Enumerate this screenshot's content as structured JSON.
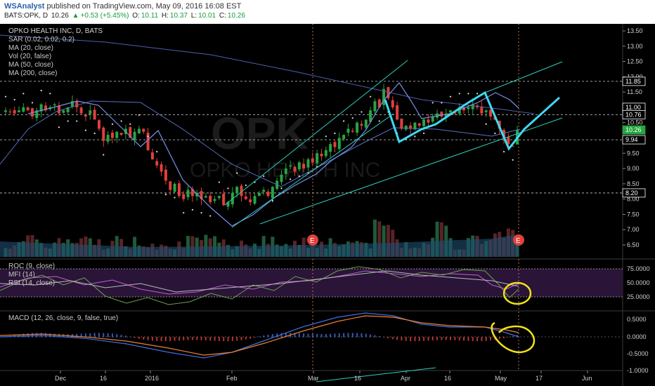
{
  "header": {
    "author": "WSAnalyst",
    "published_text": "published on TradingView.com, May 09, 2016 16:08 EST",
    "symbol": "BATS:OPK, D",
    "last": "10.26",
    "change": "+0.53 (+5.45%)",
    "o_label": "O:",
    "o_value": "10.11",
    "h_label": "H:",
    "h_value": "10.37",
    "l_label": "L:",
    "l_value": "10.01",
    "c_label": "C:",
    "c_value": "10.26"
  },
  "legend": [
    "OPKO HEALTH INC, D, BATS",
    "SAR (0.02, 0.02, 0.2)",
    "MA (20, close)",
    "Vol (20, false)",
    "MA (50, close)",
    "MA (200, close)"
  ],
  "watermark": {
    "symbol": "OPK",
    "name": "OPKO HEALTH INC"
  },
  "oscillator_legend": [
    "ROC (9, close)",
    "MFI (14)",
    "RSI (14, close)"
  ],
  "macd_legend": "MACD (12, 26, close, 9, false, true)",
  "price_axis": [
    "13.50",
    "13.00",
    "12.50",
    "12.00",
    "11.50",
    "11.00",
    "10.50",
    "10.00",
    "9.50",
    "9.00",
    "8.50",
    "8.00",
    "7.50",
    "7.00",
    "6.50"
  ],
  "price_markers": {
    "m1": "11.85",
    "m2": "11.00",
    "m3": "10.76",
    "m4": "10.26",
    "m5": "9.94",
    "m6": "8.20"
  },
  "osc_axis": [
    "75.0000",
    "50.0000",
    "25.0000"
  ],
  "macd_axis": [
    "0.5000",
    "0.0000",
    "-0.5000",
    "-1.0000"
  ],
  "time_axis": [
    "Dec",
    "16",
    "2016",
    "Feb",
    "Mar",
    "16",
    "Apr",
    "16",
    "May",
    "17",
    "Jun"
  ],
  "earnings_marker": "E",
  "colors": {
    "up": "#26a641",
    "down": "#e0403a",
    "ma20": "#7a8fe6",
    "ma50": "#5a6fbf",
    "channel": "#2fcfc0",
    "pattern": "#3fd8f0",
    "annotation": "#f0e21a",
    "rsi": "#c060d0",
    "roc": "#6f9f4f",
    "macd": "#3f6fe0",
    "signal": "#f07f2f"
  },
  "chart_data": {
    "type": "candlestick",
    "title": "OPKO HEALTH INC, D, BATS",
    "x_ticks": [
      "Dec",
      "16",
      "2016",
      "Feb",
      "Mar",
      "16",
      "Apr",
      "16",
      "May",
      "17",
      "Jun"
    ],
    "y_ticks": [
      6.5,
      7.0,
      7.5,
      8.0,
      8.5,
      9.0,
      9.5,
      10.0,
      10.5,
      11.0,
      11.5,
      12.0,
      12.5,
      13.0,
      13.5
    ],
    "ylim": [
      6.2,
      13.7
    ],
    "closes": [
      10.9,
      10.85,
      10.8,
      10.9,
      11.0,
      10.9,
      10.7,
      10.9,
      11.1,
      10.9,
      11.0,
      11.1,
      10.8,
      10.9,
      11.0,
      11.2,
      11.0,
      10.8,
      10.7,
      10.9,
      10.6,
      10.3,
      9.9,
      10.1,
      10.0,
      10.2,
      10.1,
      10.3,
      10.0,
      10.2,
      10.3,
      10.2,
      9.6,
      9.3,
      9.1,
      8.9,
      8.6,
      8.3,
      8.5,
      8.1,
      8.0,
      8.3,
      8.1,
      8.2,
      8.0,
      8.1,
      7.9,
      8.0,
      8.1,
      7.8,
      7.9,
      8.2,
      8.4,
      8.1,
      8.0,
      7.9,
      8.1,
      8.2,
      8.3,
      8.1,
      8.4,
      8.6,
      8.8,
      9.0,
      9.1,
      8.9,
      9.2,
      9.0,
      9.3,
      9.2,
      9.5,
      9.4,
      9.6,
      9.8,
      9.7,
      10.0,
      10.1,
      10.3,
      10.2,
      10.5,
      10.4,
      10.6,
      10.9,
      11.2,
      11.0,
      11.6,
      11.3,
      11.0,
      10.6,
      10.3,
      10.4,
      10.3,
      10.5,
      10.4,
      10.6,
      10.5,
      10.7,
      10.8,
      10.7,
      10.8,
      10.9,
      10.8,
      11.0,
      10.9,
      11.0,
      11.1,
      11.0,
      10.8,
      10.9,
      10.7,
      10.6,
      10.3,
      10.0,
      9.8,
      9.73,
      10.26
    ],
    "series": [
      {
        "name": "MA (20, close)"
      },
      {
        "name": "MA (50, close)"
      },
      {
        "name": "MA (200, close)"
      }
    ]
  }
}
